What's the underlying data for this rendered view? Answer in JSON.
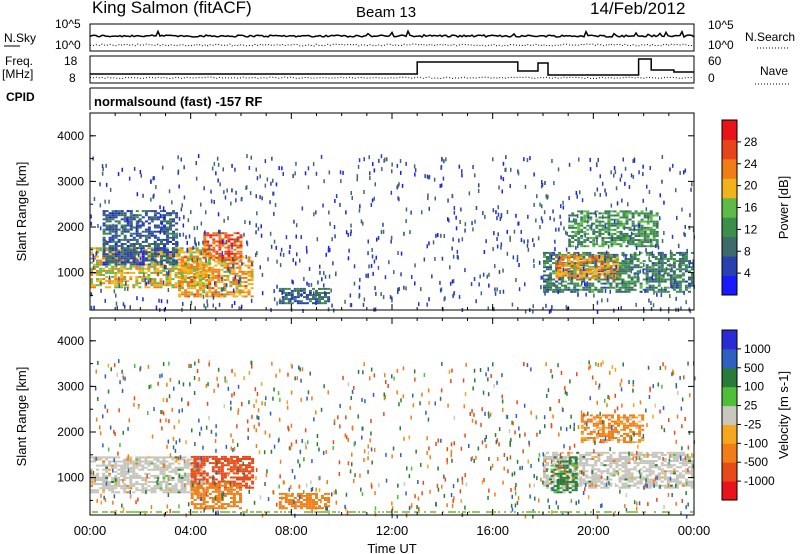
{
  "header": {
    "station": "King Salmon (fitACF)",
    "beam": "Beam 13",
    "date": "14/Feb/2012"
  },
  "summary_panels": {
    "nsky_label": "N.Sky",
    "nsky_ticks": [
      "10^5",
      "10^0"
    ],
    "nsearch_label": "N.Search",
    "nsearch_ticks": [
      "10^5",
      "10^0"
    ],
    "freq_label": "Freq.",
    "freq_unit": "[MHz]",
    "freq_ticks": [
      "18",
      "8"
    ],
    "nave_label": "Nave",
    "nave_ticks": [
      "60",
      "0"
    ],
    "cpid_label": "CPID",
    "mode_text": "normalsound (fast) -157 RF"
  },
  "colors": {
    "power_scale": [
      "#1a1aff",
      "#2a3fb0",
      "#3d6a6a",
      "#3c8f4a",
      "#5dbb46",
      "#f2b21a",
      "#f07d15",
      "#e8431a",
      "#e8141a"
    ],
    "velocity_scale": [
      "#2b2bd6",
      "#2f5fc0",
      "#2a7a3a",
      "#4fbf3a",
      "#c8c8c0",
      "#f5a81e",
      "#f07d15",
      "#e84a1a",
      "#e8141a"
    ],
    "ground_scatter": "#c4c4bc"
  },
  "chart_data": [
    {
      "type": "heatmap",
      "name": "power",
      "xlabel": "Time UT",
      "ylabel": "Slant Range [km]",
      "x_ticks": [
        "00:00",
        "04:00",
        "08:00",
        "12:00",
        "16:00",
        "20:00",
        "00:00"
      ],
      "y_ticks": [
        "1000",
        "2000",
        "3000",
        "4000"
      ],
      "ylim": [
        180,
        4500
      ],
      "xlim_hours": [
        0,
        24
      ],
      "colorbar": {
        "label": "Power [dB]",
        "ticks": [
          "4",
          "8",
          "12",
          "16",
          "20",
          "24",
          "28"
        ],
        "range": [
          0,
          30
        ]
      },
      "regions": [
        {
          "t0": 0.0,
          "t1": 4.8,
          "r0": 700,
          "r1": 1600,
          "level": 18
        },
        {
          "t0": 0.5,
          "t1": 3.5,
          "r0": 1200,
          "r1": 2400,
          "level": 7
        },
        {
          "t0": 3.5,
          "t1": 6.5,
          "r0": 500,
          "r1": 1400,
          "level": 20
        },
        {
          "t0": 4.5,
          "t1": 6.0,
          "r0": 1300,
          "r1": 1900,
          "level": 24
        },
        {
          "t0": 7.5,
          "t1": 9.5,
          "r0": 350,
          "r1": 700,
          "level": 8
        },
        {
          "t0": 18.0,
          "t1": 24.0,
          "r0": 600,
          "r1": 1500,
          "level": 10
        },
        {
          "t0": 19.0,
          "t1": 22.5,
          "r0": 1600,
          "r1": 2400,
          "level": 12
        },
        {
          "t0": 18.5,
          "t1": 21.0,
          "r0": 900,
          "r1": 1400,
          "level": 20
        }
      ]
    },
    {
      "type": "heatmap",
      "name": "velocity",
      "xlabel": "Time UT",
      "ylabel": "Slant Range [km]",
      "x_ticks": [
        "00:00",
        "04:00",
        "08:00",
        "12:00",
        "16:00",
        "20:00",
        "00:00"
      ],
      "y_ticks": [
        "1000",
        "2000",
        "3000",
        "4000"
      ],
      "ylim": [
        180,
        4500
      ],
      "xlim_hours": [
        0,
        24
      ],
      "colorbar": {
        "label": "Velocity [m s-1]",
        "ticks": [
          "1000",
          "500",
          "100",
          "25",
          "-25",
          "-100",
          "-500",
          "-1000"
        ],
        "range": [
          -1200,
          1200
        ]
      },
      "regions": [
        {
          "t0": 0.0,
          "t1": 4.5,
          "r0": 700,
          "r1": 1500,
          "level": 0
        },
        {
          "t0": 4.0,
          "t1": 6.5,
          "r0": 800,
          "r1": 1500,
          "level": -700
        },
        {
          "t0": 4.0,
          "t1": 6.0,
          "r0": 350,
          "r1": 900,
          "level": -300
        },
        {
          "t0": 7.5,
          "t1": 9.5,
          "r0": 350,
          "r1": 700,
          "level": -300
        },
        {
          "t0": 18.0,
          "t1": 24.0,
          "r0": 800,
          "r1": 1600,
          "level": 0
        },
        {
          "t0": 18.3,
          "t1": 19.3,
          "r0": 700,
          "r1": 1500,
          "level": 200
        },
        {
          "t0": 19.5,
          "t1": 22.0,
          "r0": 1800,
          "r1": 2400,
          "level": -200
        }
      ]
    }
  ]
}
